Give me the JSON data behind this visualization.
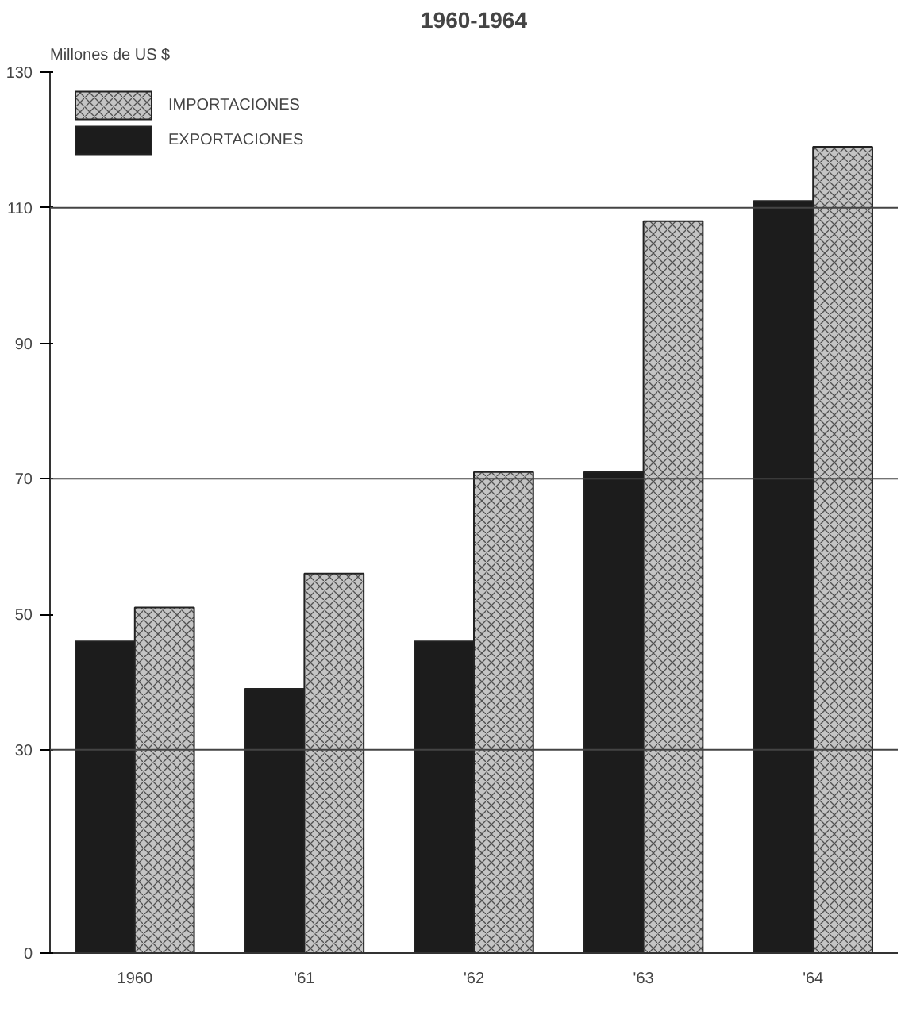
{
  "chart_data": {
    "type": "bar",
    "title": "1960-1964",
    "ylabel": "Millones de US $",
    "categories": [
      "1960",
      "'61",
      "'62",
      "'63",
      "'64"
    ],
    "series": [
      {
        "name": "EXPORTACIONES",
        "color": "#1c1c1c",
        "values": [
          46,
          39,
          46,
          71,
          111
        ]
      },
      {
        "name": "IMPORTACIONES",
        "color": "#c4c4c4",
        "values": [
          51,
          56,
          71,
          108,
          119
        ]
      }
    ],
    "ylim": [
      0,
      130
    ],
    "yticks": [
      0,
      30,
      50,
      70,
      90,
      110,
      130
    ],
    "ref_lines": [
      {
        "axis": "y",
        "value": 30
      },
      {
        "axis": "y",
        "value": 70
      },
      {
        "axis": "y",
        "value": 110
      }
    ],
    "legend": "top left",
    "grid": false
  }
}
